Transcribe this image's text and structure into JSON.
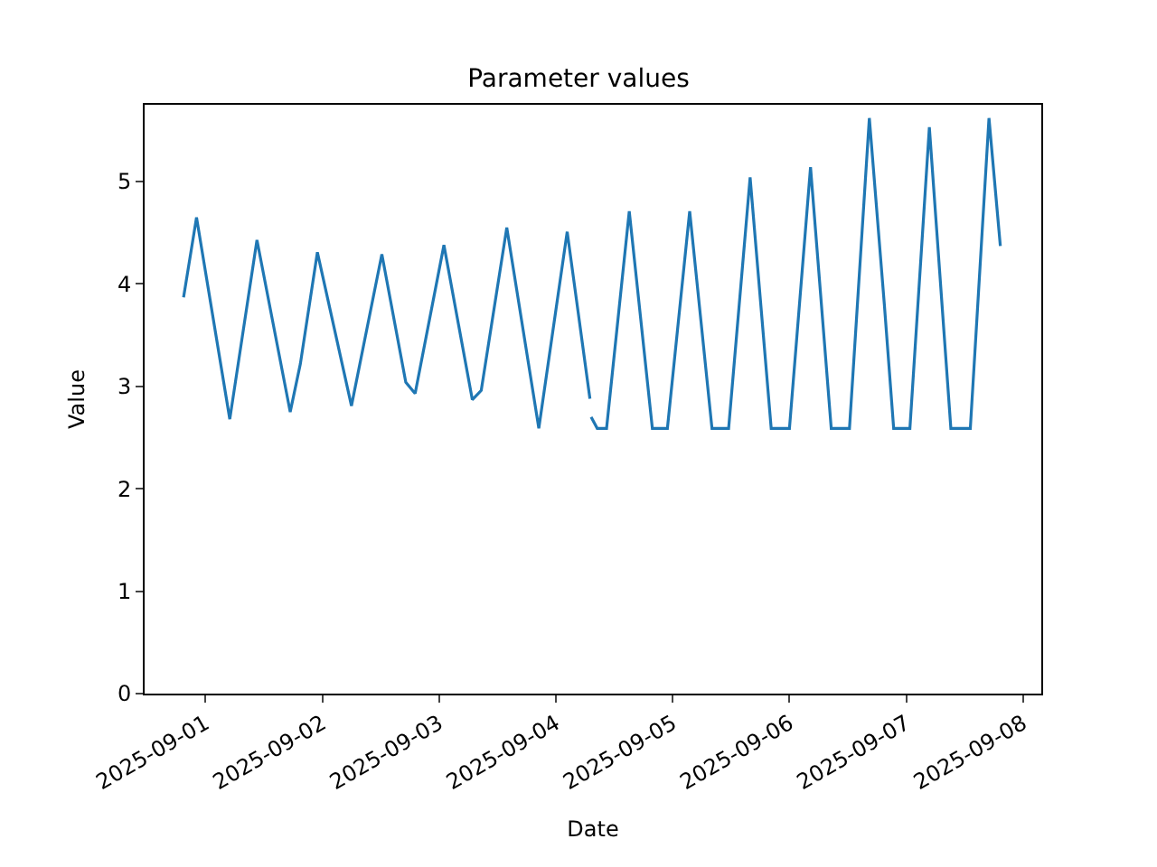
{
  "chart_data": {
    "type": "line",
    "title": "Parameter values",
    "xlabel": "Date",
    "ylabel": "Value",
    "x": [
      "2025-08-31T19:30",
      "2025-08-31T22:10",
      "2025-09-01T05:00",
      "2025-09-01T10:35",
      "2025-09-01T17:25",
      "2025-09-01T19:30",
      "2025-09-01T23:00",
      "2025-09-02T06:00",
      "2025-09-02T12:15",
      "2025-09-02T17:10",
      "2025-09-02T19:05",
      "2025-09-03T01:00",
      "2025-09-03T06:50",
      "2025-09-03T08:40",
      "2025-09-03T13:55",
      "2025-09-03T20:30",
      "2025-09-04T02:20",
      "2025-09-04T07:00",
      "2025-09-04T07:05",
      "2025-09-04T07:15",
      "2025-09-04T08:30",
      "2025-09-04T10:25",
      "2025-09-04T15:05",
      "2025-09-04T19:50",
      "2025-09-04T22:55",
      "2025-09-05T03:30",
      "2025-09-05T08:05",
      "2025-09-05T11:30",
      "2025-09-05T15:55",
      "2025-09-05T20:15",
      "2025-09-06T00:00",
      "2025-09-06T04:20",
      "2025-09-06T08:35",
      "2025-09-06T12:20",
      "2025-09-06T16:25",
      "2025-09-06T19:30",
      "2025-09-06T21:25",
      "2025-09-07T00:45",
      "2025-09-07T04:45",
      "2025-09-07T09:10",
      "2025-09-07T13:10",
      "2025-09-07T17:00",
      "2025-09-07T19:20"
    ],
    "series": [
      {
        "color": "#1f77b4",
        "values": [
          3.87,
          4.65,
          2.68,
          4.43,
          2.75,
          3.22,
          4.31,
          2.81,
          4.29,
          3.04,
          2.93,
          4.38,
          2.87,
          2.96,
          4.55,
          2.59,
          4.51,
          2.88,
          null,
          2.7,
          2.59,
          2.59,
          4.71,
          2.59,
          2.59,
          4.71,
          2.59,
          2.59,
          5.04,
          2.59,
          2.59,
          5.14,
          2.59,
          2.59,
          5.62,
          3.8,
          2.59,
          2.59,
          5.53,
          2.59,
          2.59,
          5.62,
          4.37
        ]
      }
    ],
    "xlim": [
      "2025-08-31T11:30",
      "2025-09-08T03:45"
    ],
    "xticks": [
      "2025-09-01",
      "2025-09-02",
      "2025-09-03",
      "2025-09-04",
      "2025-09-05",
      "2025-09-06",
      "2025-09-07",
      "2025-09-08"
    ],
    "ylim": [
      0,
      5.75
    ],
    "yticks": [
      0,
      1,
      2,
      3,
      4,
      5
    ],
    "marker": "none",
    "line_style": "solid"
  }
}
